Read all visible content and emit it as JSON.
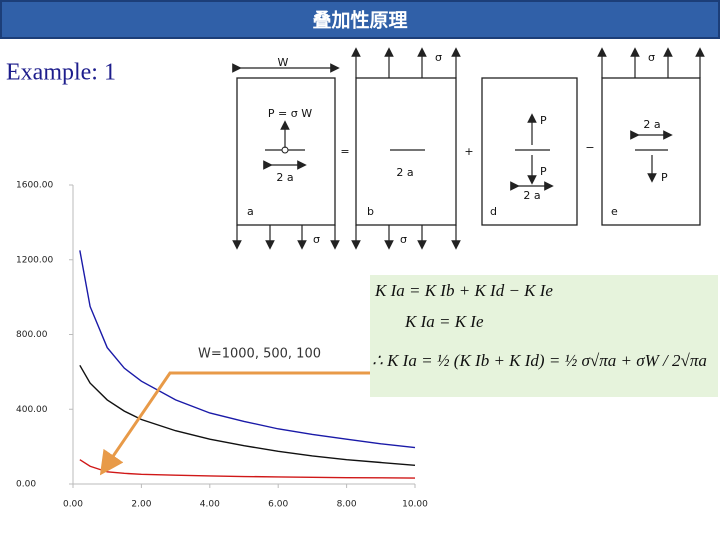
{
  "header": {
    "title": "叠加性原理"
  },
  "example_label": "Example: 1",
  "diagram": {
    "labels": {
      "w": "W",
      "sigma_b": "σ",
      "sigma_e": "σ",
      "p_sigma_w": "P = σ W",
      "two_a_a": "2 a",
      "two_a_b": "2 a",
      "two_a_d": "2 a",
      "two_a_e": "2 a",
      "p_d_top": "P",
      "p_d_bottom": "P",
      "p_e": "P",
      "a": "a",
      "b": "b",
      "d": "d",
      "e": "e",
      "sigma_a_bottom": "σ",
      "sigma_b_bottom": "σ",
      "equals": "=",
      "plus": "+",
      "minus": "−"
    }
  },
  "formulas": [
    "K Ia = K Ib + K Id − K Ie",
    "K Ia = K Ie",
    "∴   K Ia = ½ (K Ib + K Id) = ½ σ√πa + σW / 2√πa"
  ],
  "chart_data": {
    "type": "line",
    "annotation": "W=1000, 500, 100",
    "x": [
      0.2,
      0.5,
      1,
      1.5,
      2,
      3,
      4,
      5,
      6,
      7,
      8,
      9,
      10
    ],
    "series": [
      {
        "color": "#1a1aa8",
        "values": [
          1250,
          950,
          730,
          620,
          550,
          450,
          380,
          335,
          295,
          265,
          240,
          215,
          195
        ]
      },
      {
        "color": "#111111",
        "values": [
          635,
          540,
          450,
          390,
          345,
          285,
          240,
          205,
          175,
          150,
          130,
          115,
          100
        ]
      },
      {
        "color": "#d01818",
        "values": [
          130,
          95,
          65,
          57,
          52,
          47,
          43,
          40,
          38,
          36,
          34,
          33,
          32
        ]
      }
    ],
    "xlim": [
      0,
      10
    ],
    "ylim": [
      0,
      1600
    ],
    "xticks": [
      {
        "value": 0,
        "label": "0.00"
      },
      {
        "value": 2,
        "label": "2.00"
      },
      {
        "value": 4,
        "label": "4.00"
      },
      {
        "value": 6,
        "label": "6.00"
      },
      {
        "value": 8,
        "label": "8.00"
      },
      {
        "value": 10,
        "label": "10.00"
      }
    ],
    "yticks": [
      {
        "value": 0,
        "label": "0.00"
      },
      {
        "value": 400,
        "label": "400.00"
      },
      {
        "value": 800,
        "label": "800.00"
      },
      {
        "value": 1200,
        "label": "1200.00"
      },
      {
        "value": 1600,
        "label": "1600.00"
      }
    ],
    "grid": false
  }
}
